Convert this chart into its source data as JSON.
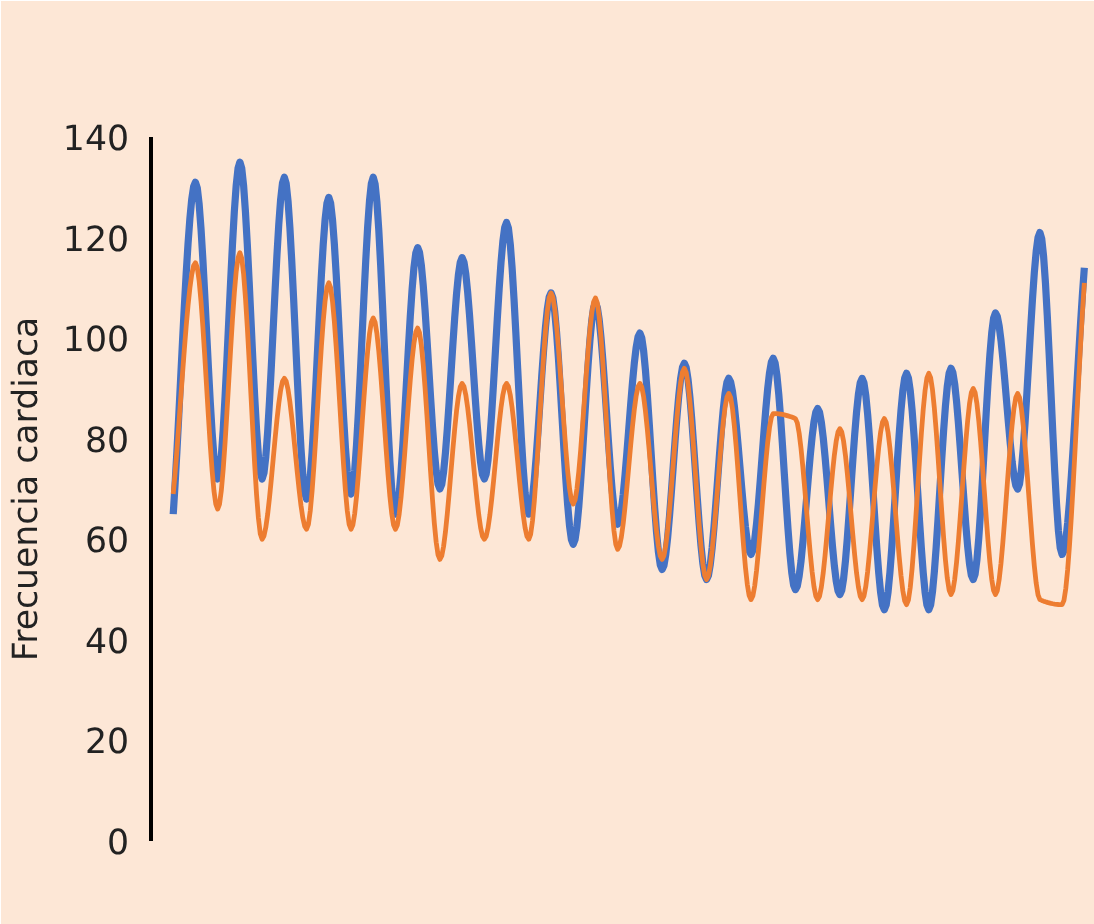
{
  "chart_data": {
    "type": "line",
    "ylabel": "Frecuencia cardiaca",
    "categories": [
      null,
      null,
      null,
      null,
      null,
      null,
      null,
      null,
      null,
      null,
      null,
      null,
      null,
      null,
      null,
      null,
      null,
      null,
      null,
      null,
      null,
      null,
      null,
      null,
      null,
      null,
      null,
      null,
      null,
      null,
      null,
      null,
      null,
      null,
      null,
      null,
      null,
      null,
      null,
      null,
      null,
      null
    ],
    "series": [
      {
        "color": "#4472c4",
        "values": [
          65,
          131,
          72,
          135,
          72,
          132,
          68,
          128,
          69,
          132,
          65,
          118,
          70,
          116,
          72,
          123,
          65,
          109,
          59,
          107,
          63,
          101,
          54,
          95,
          52,
          92,
          57,
          96,
          50,
          86,
          49,
          92,
          46,
          93,
          46,
          94,
          52,
          105,
          70,
          121,
          57,
          114
        ]
      },
      {
        "color": "#ed7d31",
        "values": [
          69,
          115,
          66,
          117,
          60,
          92,
          62,
          111,
          62,
          104,
          62,
          102,
          56,
          91,
          60,
          91,
          60,
          109,
          67,
          108,
          58,
          91,
          56,
          94,
          52,
          89,
          48,
          85,
          84,
          48,
          82,
          48,
          84,
          47,
          93,
          49,
          90,
          49,
          89,
          48,
          47,
          111
        ]
      }
    ],
    "ylim": [
      0,
      140
    ],
    "yticks": [
      0,
      20,
      40,
      60,
      80,
      100,
      120,
      140
    ],
    "tick_labels": "y",
    "grid": false,
    "marker": "none",
    "line_style": "solid"
  }
}
